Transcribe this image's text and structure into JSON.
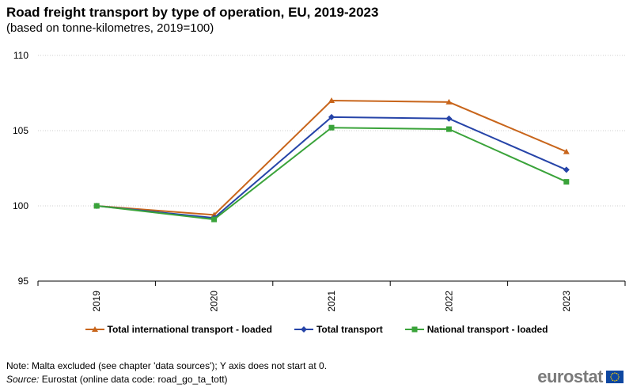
{
  "chart_data": {
    "type": "line",
    "title": "Road freight transport by type of operation, EU, 2019-2023",
    "subtitle": "(based on tonne-kilometres, 2019=100)",
    "categories": [
      "2019",
      "2020",
      "2021",
      "2022",
      "2023"
    ],
    "ylim": [
      95,
      110
    ],
    "yticks": [
      95,
      100,
      105,
      110
    ],
    "grid": true,
    "legend_position": "bottom",
    "series": [
      {
        "name": "Total international transport - loaded",
        "values": [
          100,
          99.4,
          107.0,
          106.9,
          103.6
        ],
        "color": "#c8651b",
        "marker": "triangle"
      },
      {
        "name": "Total transport",
        "values": [
          100,
          99.2,
          105.9,
          105.8,
          102.4
        ],
        "color": "#2644a8",
        "marker": "diamond"
      },
      {
        "name": "National transport - loaded",
        "values": [
          100,
          99.1,
          105.2,
          105.1,
          101.6
        ],
        "color": "#3aa33a",
        "marker": "square"
      }
    ]
  },
  "footer": {
    "note": "Note: Malta excluded (see chapter 'data sources'); Y axis does not start at 0.",
    "source_label": "Source:",
    "source_text": " Eurostat (online data code: road_go_ta_tott)"
  },
  "brand": {
    "name": "eurostat",
    "flag_color": "#0e47a1",
    "star_color": "#ffd200"
  }
}
